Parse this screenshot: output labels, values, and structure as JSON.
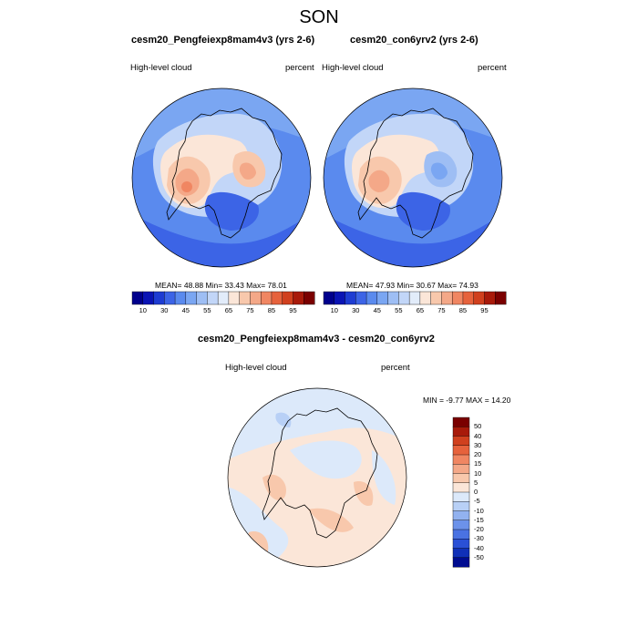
{
  "page_title": "SON",
  "colors": {
    "coast": "#000000",
    "frame": "#000000"
  },
  "panels": [
    {
      "title": "cesm20_Pengfeiexp8mam4v3 (yrs 2-6)",
      "variable": "High-level cloud",
      "units": "percent",
      "stats": "MEAN=  48.88  Min=  33.43  Max=  78.01"
    },
    {
      "title": "cesm20_con6yrv2 (yrs 2-6)",
      "variable": "High-level cloud",
      "units": "percent",
      "stats": "MEAN=  47.93  Min=  30.67  Max=  74.93"
    },
    {
      "title": "cesm20_Pengfeiexp8mam4v3 - cesm20_con6yrv2",
      "variable": "High-level cloud",
      "units": "percent",
      "stats": "MIN =  -9.77 MAX =  14.20"
    }
  ],
  "abs_colorbar": {
    "colors": [
      "#00008c",
      "#0a14b4",
      "#1e3cd2",
      "#3c64e6",
      "#5a8aee",
      "#7aa6f2",
      "#9ebef4",
      "#c2d6f8",
      "#e2ecfa",
      "#fbe6d8",
      "#f8c8ac",
      "#f4a888",
      "#f08662",
      "#e6623c",
      "#d0401e",
      "#a81a0a",
      "#7a0000"
    ],
    "labels": [
      "10",
      "30",
      "45",
      "55",
      "65",
      "75",
      "85",
      "95"
    ]
  },
  "diff_colorbar": {
    "colors": [
      "#7a0000",
      "#a81a0a",
      "#d0401e",
      "#e6623c",
      "#f08662",
      "#f4a888",
      "#f8c8ac",
      "#fbe6d8",
      "#dce9fa",
      "#b8d0f6",
      "#92b2f0",
      "#6c92ea",
      "#4a72e2",
      "#2a50d6",
      "#1030b8",
      "#000c90"
    ],
    "labels": [
      "50",
      "40",
      "30",
      "20",
      "15",
      "10",
      "5",
      "0",
      "-5",
      "-10",
      "-15",
      "-20",
      "-30",
      "-40",
      "-50"
    ]
  },
  "chart_data": [
    {
      "type": "map",
      "projection": "south polar stereographic",
      "title": "cesm20_Pengfeiexp8mam4v3 (yrs 2-6)",
      "field": "High-level cloud",
      "units": "percent",
      "mean": 48.88,
      "min": 33.43,
      "max": 78.01,
      "contour_levels": [
        10,
        20,
        30,
        40,
        45,
        50,
        55,
        60,
        65,
        70,
        75,
        80,
        85,
        90,
        95
      ]
    },
    {
      "type": "map",
      "projection": "south polar stereographic",
      "title": "cesm20_con6yrv2 (yrs 2-6)",
      "field": "High-level cloud",
      "units": "percent",
      "mean": 47.93,
      "min": 30.67,
      "max": 74.93,
      "contour_levels": [
        10,
        20,
        30,
        40,
        45,
        50,
        55,
        60,
        65,
        70,
        75,
        80,
        85,
        90,
        95
      ]
    },
    {
      "type": "map",
      "projection": "south polar stereographic",
      "title": "cesm20_Pengfeiexp8mam4v3 - cesm20_con6yrv2",
      "field": "High-level cloud",
      "units": "percent",
      "min": -9.77,
      "max": 14.2,
      "contour_levels": [
        -50,
        -40,
        -30,
        -20,
        -15,
        -10,
        -5,
        0,
        5,
        10,
        15,
        20,
        30,
        40,
        50
      ]
    }
  ]
}
